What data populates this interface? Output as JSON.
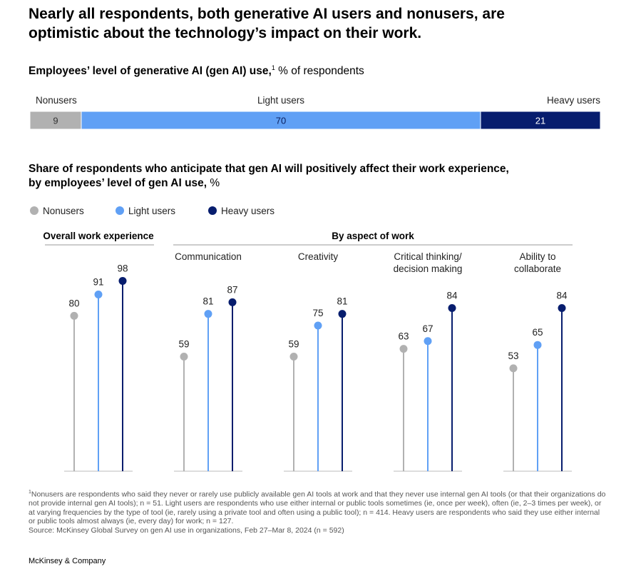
{
  "headline": "Nearly all respondents, both generative AI users and nonusers, are optimistic about the technology’s impact on their work.",
  "chart_data": [
    {
      "type": "stacked_bar",
      "title": "Employees’ level of generative AI (gen AI) use,",
      "title_note": "1",
      "title_unit": "% of respondents",
      "series": [
        {
          "name": "Nonusers",
          "color": "#b1b1b1",
          "label_color": "#333333",
          "values": [
            9
          ]
        },
        {
          "name": "Light users",
          "color": "#60a0f5",
          "label_color": "#0b1f5e",
          "values": [
            70
          ]
        },
        {
          "name": "Heavy users",
          "color": "#071d6e",
          "label_color": "#ffffff",
          "values": [
            21
          ]
        }
      ]
    },
    {
      "type": "lollipop",
      "title": "Share of respondents who anticipate that gen AI will positively affect their work experience,",
      "subtitle": "by employees’ level of gen AI use,",
      "title_unit": "%",
      "group_label": "By aspect of work",
      "categories": [
        "Overall work experience",
        "Communication",
        "Creativity",
        "Critical thinking/\ndecision making",
        "Ability to\ncollaborate"
      ],
      "series": [
        {
          "name": "Nonusers",
          "color": "#b1b1b1",
          "values": [
            80,
            59,
            59,
            63,
            53
          ]
        },
        {
          "name": "Light users",
          "color": "#60a0f5",
          "values": [
            91,
            81,
            75,
            67,
            65
          ]
        },
        {
          "name": "Heavy users",
          "color": "#071d6e",
          "values": [
            98,
            87,
            81,
            84,
            84
          ]
        }
      ],
      "ylim": [
        0,
        100
      ]
    }
  ],
  "footnote_marker": "1",
  "footnote": "Nonusers are respondents who said they never or rarely use publicly available gen AI tools at work and that they never use internal gen AI tools (or that their organizations do not provide internal gen AI tools); n = 51. Light users are respondents who use either internal or public tools sometimes (ie, once per week), often (ie, 2–3 times per week), or at varying frequencies by the type of tool (ie, rarely using a private tool and often using a public tool); n = 414. Heavy users are respondents who said they use either internal or public tools almost always (ie, every day) for work; n = 127.",
  "source": "Source: McKinsey Global Survey on gen AI use in organizations, Feb 27–Mar 8, 2024 (n = 592)",
  "brand": "McKinsey & Company"
}
